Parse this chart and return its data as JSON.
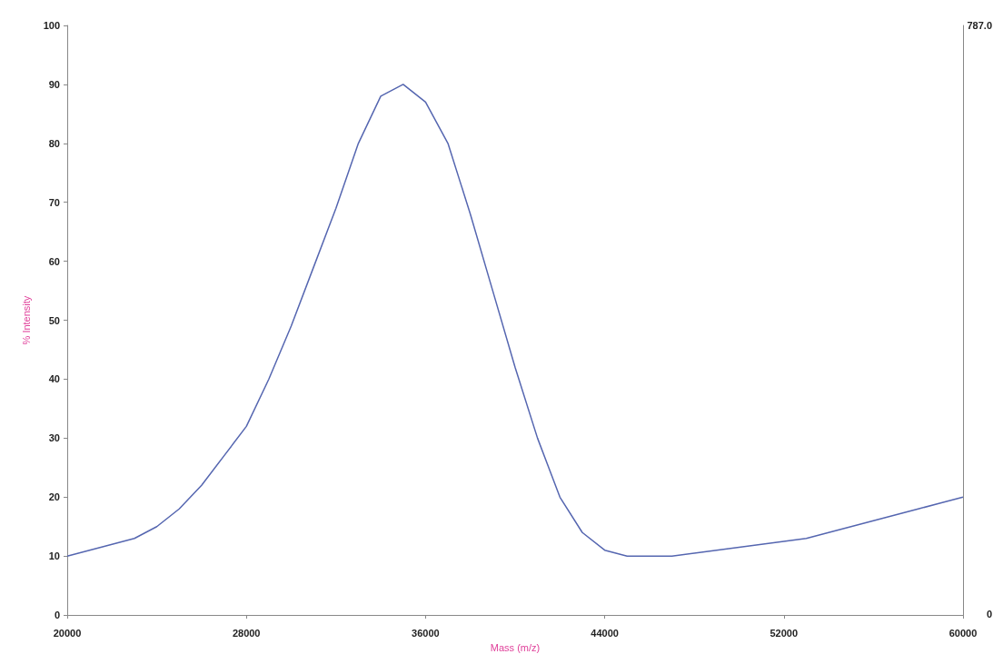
{
  "chart_data": {
    "type": "line",
    "xlabel": "Mass (m/z)",
    "ylabel": "% Intensity",
    "xlim": [
      20000,
      60000
    ],
    "xticks": [
      20000,
      28000,
      36000,
      44000,
      52000,
      60000
    ],
    "ylim": [
      0,
      100
    ],
    "yticks": [
      0,
      10,
      20,
      30,
      40,
      50,
      60,
      70,
      80,
      90,
      100
    ],
    "annotations": [
      "787.0",
      "0"
    ],
    "grid": false,
    "marker": "none",
    "line_style": "solid",
    "x": [
      20000,
      21000,
      22000,
      23000,
      24000,
      25000,
      26000,
      27000,
      28000,
      29000,
      30000,
      31000,
      32000,
      33000,
      34000,
      35000,
      36000,
      37000,
      38000,
      39000,
      40000,
      41000,
      42000,
      43000,
      44000,
      45000,
      46000,
      47000,
      48000,
      49000,
      50000,
      51000,
      52000,
      53000,
      54000,
      55000,
      56000,
      57000,
      58000,
      59000,
      60000
    ],
    "series": [
      {
        "color": "#5566b0",
        "values": [
          10,
          11,
          12,
          13,
          15,
          18,
          22,
          27,
          32,
          40,
          49,
          59,
          69,
          80,
          88,
          90,
          87,
          80,
          68,
          55,
          42,
          30,
          20,
          14,
          11,
          10,
          10,
          10,
          10.5,
          11,
          11.5,
          12,
          12.5,
          13,
          14,
          15,
          16,
          17,
          18,
          19,
          20
        ]
      }
    ]
  }
}
